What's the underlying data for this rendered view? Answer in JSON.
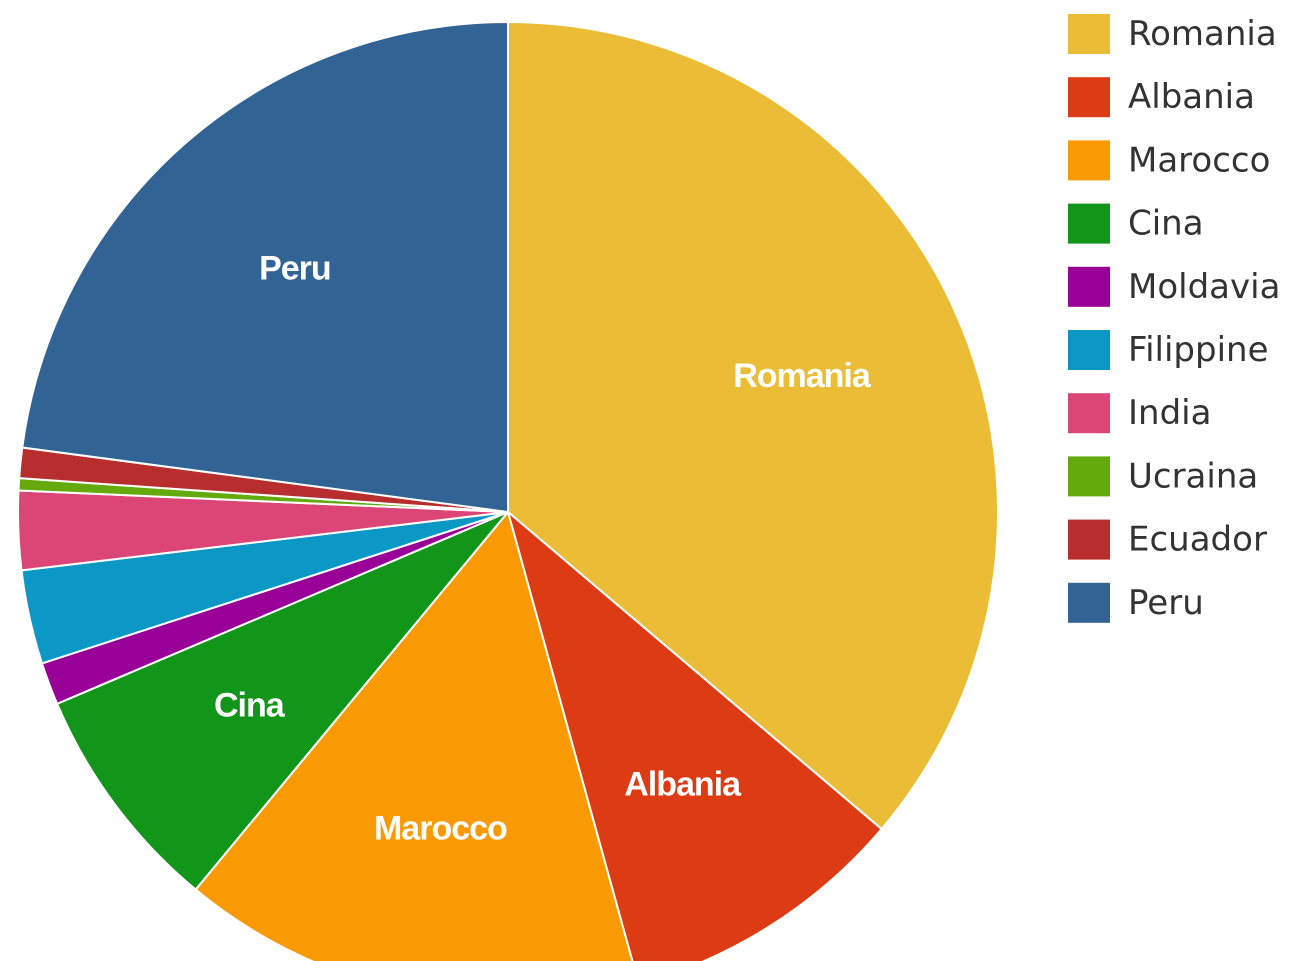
{
  "chart_data": {
    "type": "pie",
    "start_angle_deg": 0,
    "direction": "clockwise",
    "legend_position": "right",
    "slices": [
      {
        "label": "Romania",
        "value": 36.2,
        "color": "#EBBD36",
        "show_label": true
      },
      {
        "label": "Albania",
        "value": 9.5,
        "color": "#DC3B13",
        "show_label": true
      },
      {
        "label": "Marocco",
        "value": 15.3,
        "color": "#FA9A02",
        "show_label": true
      },
      {
        "label": "Cina",
        "value": 7.6,
        "color": "#119619",
        "show_label": true
      },
      {
        "label": "Moldavia",
        "value": 1.4,
        "color": "#980098",
        "show_label": false
      },
      {
        "label": "Filippine",
        "value": 3.1,
        "color": "#0C98C5",
        "show_label": false
      },
      {
        "label": "India",
        "value": 2.6,
        "color": "#DC4677",
        "show_label": false
      },
      {
        "label": "Ucraina",
        "value": 0.4,
        "color": "#65AA0D",
        "show_label": false
      },
      {
        "label": "Ecuador",
        "value": 1.0,
        "color": "#B82E2E",
        "show_label": false
      },
      {
        "label": "Peru",
        "value": 22.9,
        "color": "#316395",
        "show_label": true
      }
    ]
  }
}
